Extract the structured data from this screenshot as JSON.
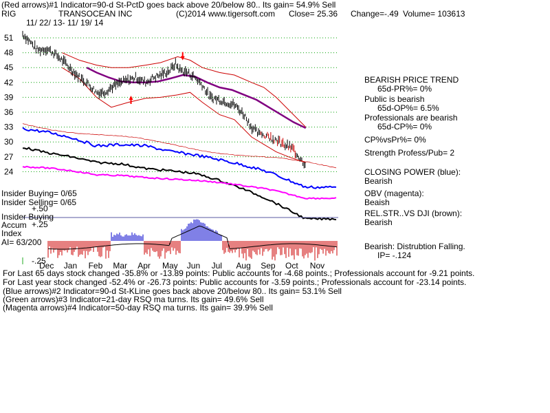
{
  "header": {
    "line1": "(Red arrows)#1 Indicator=90-d St-PctD goes back above 20/below 80.. Its gain= 54.9% Sell",
    "ticker": "RIG",
    "company": "TRANSOCEAN INC",
    "copyright": "(C)2014 www.tigersoft.com",
    "close": "Close=  25.36",
    "change": "Change=-.49",
    "volume": "Volume= 103613",
    "date_range": "11/ 22/ 13-  11/ 19/ 14"
  },
  "side_labels": {
    "insider_buying": "Insider Buying= 0/65",
    "insider_selling": "Insider Selling= 0/65",
    "plus50": "+.50",
    "accum_title": "Insider Buying",
    "accum": "Accum",
    "plus25": "+.25",
    "index": "Index",
    "ai": "AI= 63/200",
    "minus25": "-.25"
  },
  "right_panel": {
    "trend_title": "BEARISH PRICE TREND",
    "pr": "65d-PR%= 0%",
    "public_bearish": "Public is bearish",
    "op": "65d-OP%= 6.5%",
    "prof_bearish": "Professionals are bearish",
    "cp": "65d-CP%= 0%",
    "cpvspr": "CP%vsPr%=  0%",
    "strength": "Strength Profess/Pub= 2",
    "closing_power": "CLOSING POWER (blue):",
    "closing_power_val": "Bearish",
    "obv": "OBV (magenta):",
    "obv_val": "Beaish",
    "relstr": "REL.STR..VS DJI (brown):",
    "relstr_val": "Bearish",
    "distribution": "Bearish: Distrubtion Falling.",
    "ip": "IP= -.124"
  },
  "footer": {
    "line1": "For Last 65 days stock changed -35.8% or -13.89 points:  Public accounts for -4.68 points.;  Professionals account for -9.21 points.",
    "line2": "For Last year stock changed -52.4% or -26.73 points:  Public accounts for -3.59 points.;  Professionals account for -23.14 points.",
    "line3": "(Blue arrows)#2 Indicator=90-d St-KLine goes back above 20/below 80.. Its gain= 53.1% Sell",
    "line4": "(Green arrows)#3 Indicator=21-day RSQ ma turns. Its gain= 49.6% Sell",
    "line5": "(Magenta arrows)#4 Indicator=50-day RSQ ma turns. Its gain= 39.9% Sell"
  },
  "colors": {
    "price": "#000000",
    "band": "#cc0000",
    "ma": "#800080",
    "closing_power": "#0000ff",
    "obv": "#ff00ff",
    "relstr": "#000000",
    "grid": "#00a000",
    "accum_pos": "#0000cc",
    "accum_neg": "#cc0000",
    "hline": "#5a5aa0"
  },
  "chart_data": {
    "type": "line",
    "y_ticks": [
      51,
      48,
      45,
      42,
      39,
      36,
      33,
      30,
      27,
      24
    ],
    "ylim": [
      24,
      51
    ],
    "months": [
      "Dec",
      "Jan",
      "Feb",
      "Mar",
      "Apr",
      "May",
      "Jun",
      "Jul",
      "Aug",
      "Sep",
      "Oct",
      "Nov"
    ],
    "price_path": [
      [
        0,
        51.8
      ],
      [
        0.3,
        50.2
      ],
      [
        0.6,
        48.5
      ],
      [
        1.0,
        48.8
      ],
      [
        1.3,
        47.8
      ],
      [
        1.6,
        46.5
      ],
      [
        2.0,
        44.5
      ],
      [
        2.3,
        43.0
      ],
      [
        2.6,
        42.0
      ],
      [
        3.0,
        40.0
      ],
      [
        3.3,
        40.0
      ],
      [
        3.6,
        41.0
      ],
      [
        4.0,
        42.0
      ],
      [
        4.3,
        42.5
      ],
      [
        4.6,
        43.0
      ],
      [
        5.0,
        42.0
      ],
      [
        5.3,
        43.0
      ],
      [
        5.6,
        43.5
      ],
      [
        6.0,
        44.5
      ],
      [
        6.2,
        45.8
      ],
      [
        6.4,
        44.5
      ],
      [
        6.7,
        44.0
      ],
      [
        7.0,
        43.0
      ],
      [
        7.3,
        41.5
      ],
      [
        7.6,
        39.0
      ],
      [
        8.0,
        38.5
      ],
      [
        8.3,
        38.0
      ],
      [
        8.6,
        37.5
      ],
      [
        9.0,
        35.5
      ],
      [
        9.3,
        33.0
      ],
      [
        9.6,
        31.5
      ],
      [
        10.0,
        31.0
      ],
      [
        10.3,
        30.5
      ],
      [
        10.6,
        29.5
      ],
      [
        11.0,
        28.5
      ],
      [
        11.3,
        26.5
      ],
      [
        11.5,
        25.4
      ]
    ],
    "ma_path": [
      [
        2.6,
        45.0
      ],
      [
        3.0,
        44.0
      ],
      [
        3.5,
        43.0
      ],
      [
        4.0,
        42.2
      ],
      [
        4.5,
        42.0
      ],
      [
        5.0,
        42.0
      ],
      [
        5.5,
        42.2
      ],
      [
        6.0,
        42.8
      ],
      [
        6.5,
        43.5
      ],
      [
        7.0,
        43.2
      ],
      [
        7.5,
        42.0
      ],
      [
        8.0,
        41.0
      ],
      [
        8.5,
        40.5
      ],
      [
        9.0,
        39.5
      ],
      [
        9.5,
        38.5
      ],
      [
        10.0,
        37.0
      ],
      [
        10.5,
        35.5
      ],
      [
        11.0,
        34.0
      ],
      [
        11.5,
        32.8
      ]
    ],
    "upper_band": [
      [
        1.6,
        48.0
      ],
      [
        2.3,
        46.5
      ],
      [
        3.0,
        45.5
      ],
      [
        3.6,
        45.0
      ],
      [
        4.3,
        45.0
      ],
      [
        5.0,
        45.5
      ],
      [
        5.6,
        46.0
      ],
      [
        6.3,
        47.2
      ],
      [
        6.8,
        46.5
      ],
      [
        7.3,
        45.0
      ],
      [
        8.0,
        44.0
      ],
      [
        8.6,
        43.5
      ],
      [
        9.3,
        42.0
      ],
      [
        9.8,
        41.0
      ],
      [
        10.3,
        39.0
      ],
      [
        10.8,
        36.5
      ],
      [
        11.5,
        33.0
      ]
    ],
    "lower_band": [
      [
        1.6,
        45.0
      ],
      [
        2.3,
        42.8
      ],
      [
        3.0,
        39.0
      ],
      [
        3.6,
        37.0
      ],
      [
        4.3,
        38.0
      ],
      [
        5.0,
        38.8
      ],
      [
        5.6,
        39.0
      ],
      [
        6.3,
        39.5
      ],
      [
        6.8,
        40.0
      ],
      [
        7.3,
        38.0
      ],
      [
        8.0,
        35.5
      ],
      [
        8.6,
        34.5
      ],
      [
        9.3,
        31.0
      ],
      [
        9.8,
        29.5
      ],
      [
        10.3,
        28.0
      ],
      [
        10.8,
        27.0
      ],
      [
        11.5,
        25.8
      ]
    ],
    "arrows": [
      {
        "x": 4.4,
        "y": 38.5,
        "direction": "up"
      },
      {
        "x": 6.5,
        "y": 47.3,
        "direction": "down"
      }
    ]
  }
}
